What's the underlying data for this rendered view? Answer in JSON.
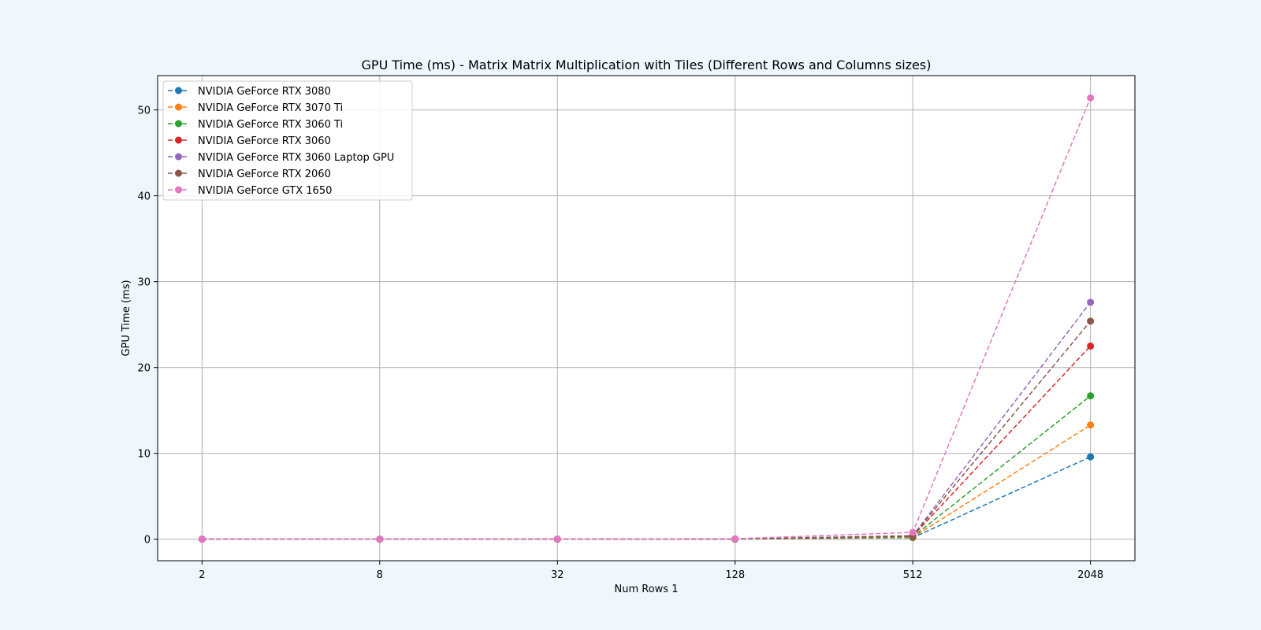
{
  "chart_data": {
    "type": "line",
    "title": "GPU Time (ms) - Matrix Matrix Multiplication with Tiles (Different Rows and Columns sizes)",
    "xlabel": "Num Rows 1",
    "ylabel": "GPU Time (ms)",
    "x_scale": "log2",
    "x": [
      2,
      8,
      32,
      128,
      512,
      2048
    ],
    "x_tick_labels": [
      "2",
      "8",
      "32",
      "128",
      "512",
      "2048"
    ],
    "y_ticks": [
      0,
      10,
      20,
      30,
      40,
      50
    ],
    "ylim": [
      -2.5,
      54
    ],
    "grid": true,
    "legend_position": "top-left",
    "line_style": "dashed",
    "marker": "circle",
    "series": [
      {
        "name": "NVIDIA GeForce RTX 3080",
        "color": "#1f77b4",
        "values": [
          0.01,
          0.01,
          0.01,
          0.02,
          0.18,
          9.6
        ]
      },
      {
        "name": "NVIDIA GeForce RTX 3070 Ti",
        "color": "#ff7f0e",
        "values": [
          0.01,
          0.01,
          0.01,
          0.02,
          0.22,
          13.3
        ]
      },
      {
        "name": "NVIDIA GeForce RTX 3060 Ti",
        "color": "#2ca02c",
        "values": [
          0.01,
          0.01,
          0.01,
          0.02,
          0.28,
          16.7
        ]
      },
      {
        "name": "NVIDIA GeForce RTX 3060",
        "color": "#d62728",
        "values": [
          0.01,
          0.01,
          0.01,
          0.03,
          0.36,
          22.5
        ]
      },
      {
        "name": "NVIDIA GeForce RTX 3060 Laptop GPU",
        "color": "#9467bd",
        "values": [
          0.01,
          0.01,
          0.02,
          0.03,
          0.42,
          27.6
        ]
      },
      {
        "name": "NVIDIA GeForce RTX 2060",
        "color": "#8c564b",
        "values": [
          0.01,
          0.01,
          0.01,
          0.03,
          0.4,
          25.4
        ]
      },
      {
        "name": "NVIDIA GeForce GTX 1650",
        "color": "#e377c2",
        "values": [
          0.02,
          0.02,
          0.03,
          0.06,
          0.8,
          51.4
        ]
      }
    ]
  }
}
